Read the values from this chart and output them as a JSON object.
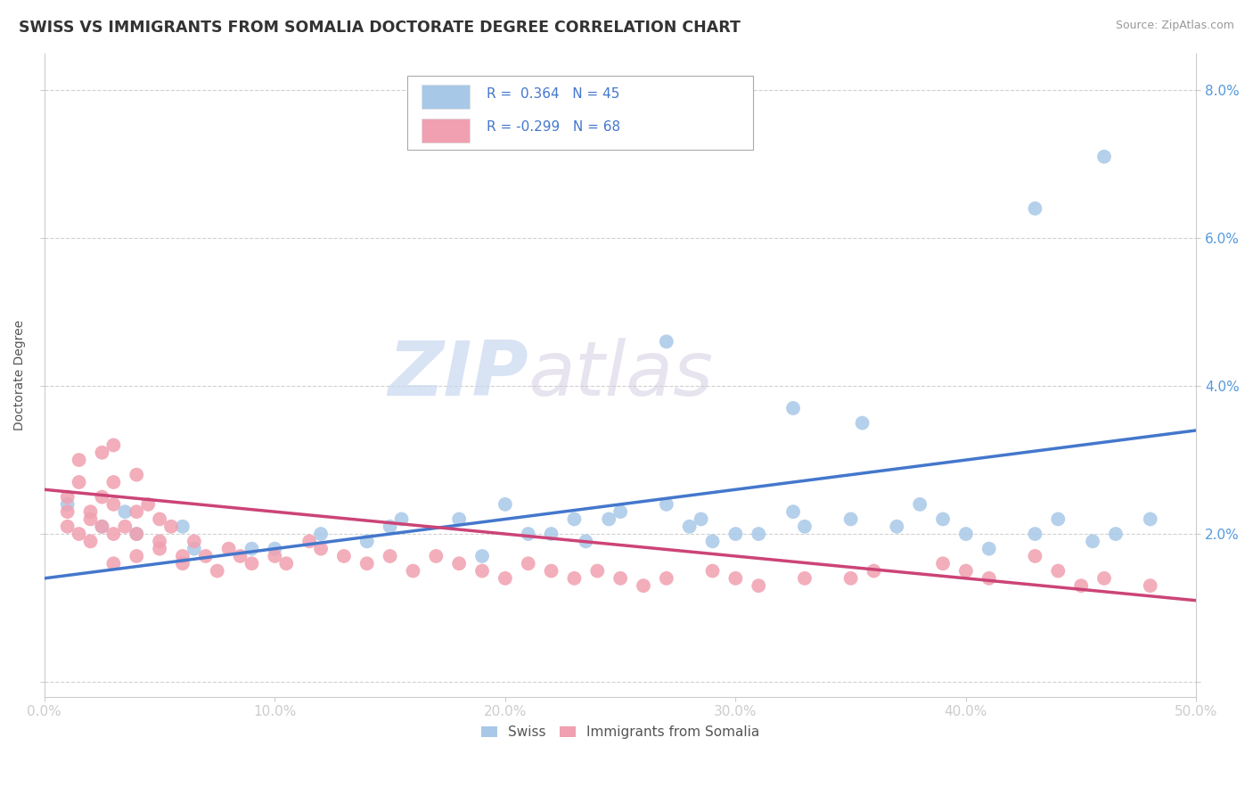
{
  "title": "SWISS VS IMMIGRANTS FROM SOMALIA DOCTORATE DEGREE CORRELATION CHART",
  "source": "Source: ZipAtlas.com",
  "ylabel": "Doctorate Degree",
  "xlim": [
    0.0,
    0.5
  ],
  "ylim": [
    -0.002,
    0.085
  ],
  "yticks": [
    0.0,
    0.02,
    0.04,
    0.06,
    0.08
  ],
  "ytick_labels_right": [
    "",
    "2.0%",
    "4.0%",
    "6.0%",
    "8.0%"
  ],
  "xtick_labels": [
    "0.0%",
    "10.0%",
    "20.0%",
    "30.0%",
    "40.0%",
    "50.0%"
  ],
  "xticks": [
    0.0,
    0.1,
    0.2,
    0.3,
    0.4,
    0.5
  ],
  "legend_top": {
    "R_swiss": "0.364",
    "N_swiss": "45",
    "R_somalia": "-0.299",
    "N_somalia": "68"
  },
  "swiss_color": "#a8c8e8",
  "somalia_color": "#f0a0b0",
  "swiss_line_color": "#4477cc",
  "somalia_line_color": "#cc4477",
  "background_color": "#ffffff",
  "grid_color": "#cccccc",
  "watermark_zip": "ZIP",
  "watermark_atlas": "atlas",
  "swiss_scatter": [
    [
      0.025,
      0.021
    ],
    [
      0.035,
      0.023
    ],
    [
      0.04,
      0.02
    ],
    [
      0.01,
      0.024
    ],
    [
      0.06,
      0.021
    ],
    [
      0.065,
      0.018
    ],
    [
      0.09,
      0.018
    ],
    [
      0.1,
      0.018
    ],
    [
      0.12,
      0.02
    ],
    [
      0.14,
      0.019
    ],
    [
      0.15,
      0.021
    ],
    [
      0.155,
      0.022
    ],
    [
      0.18,
      0.022
    ],
    [
      0.19,
      0.017
    ],
    [
      0.2,
      0.024
    ],
    [
      0.21,
      0.02
    ],
    [
      0.22,
      0.02
    ],
    [
      0.23,
      0.022
    ],
    [
      0.235,
      0.019
    ],
    [
      0.245,
      0.022
    ],
    [
      0.25,
      0.023
    ],
    [
      0.27,
      0.024
    ],
    [
      0.28,
      0.021
    ],
    [
      0.285,
      0.022
    ],
    [
      0.29,
      0.019
    ],
    [
      0.3,
      0.02
    ],
    [
      0.31,
      0.02
    ],
    [
      0.325,
      0.023
    ],
    [
      0.33,
      0.021
    ],
    [
      0.35,
      0.022
    ],
    [
      0.37,
      0.021
    ],
    [
      0.38,
      0.024
    ],
    [
      0.39,
      0.022
    ],
    [
      0.4,
      0.02
    ],
    [
      0.41,
      0.018
    ],
    [
      0.43,
      0.02
    ],
    [
      0.44,
      0.022
    ],
    [
      0.455,
      0.019
    ],
    [
      0.465,
      0.02
    ],
    [
      0.48,
      0.022
    ],
    [
      0.27,
      0.046
    ],
    [
      0.325,
      0.037
    ],
    [
      0.355,
      0.035
    ],
    [
      0.43,
      0.064
    ],
    [
      0.46,
      0.071
    ]
  ],
  "somalia_scatter": [
    [
      0.01,
      0.021
    ],
    [
      0.01,
      0.025
    ],
    [
      0.01,
      0.023
    ],
    [
      0.015,
      0.02
    ],
    [
      0.015,
      0.027
    ],
    [
      0.015,
      0.03
    ],
    [
      0.02,
      0.022
    ],
    [
      0.02,
      0.019
    ],
    [
      0.02,
      0.023
    ],
    [
      0.025,
      0.031
    ],
    [
      0.025,
      0.025
    ],
    [
      0.025,
      0.021
    ],
    [
      0.03,
      0.024
    ],
    [
      0.03,
      0.027
    ],
    [
      0.03,
      0.02
    ],
    [
      0.03,
      0.016
    ],
    [
      0.03,
      0.032
    ],
    [
      0.035,
      0.021
    ],
    [
      0.04,
      0.023
    ],
    [
      0.04,
      0.028
    ],
    [
      0.04,
      0.017
    ],
    [
      0.04,
      0.02
    ],
    [
      0.045,
      0.024
    ],
    [
      0.05,
      0.019
    ],
    [
      0.05,
      0.022
    ],
    [
      0.05,
      0.018
    ],
    [
      0.055,
      0.021
    ],
    [
      0.06,
      0.017
    ],
    [
      0.06,
      0.016
    ],
    [
      0.065,
      0.019
    ],
    [
      0.07,
      0.017
    ],
    [
      0.075,
      0.015
    ],
    [
      0.08,
      0.018
    ],
    [
      0.085,
      0.017
    ],
    [
      0.09,
      0.016
    ],
    [
      0.1,
      0.017
    ],
    [
      0.105,
      0.016
    ],
    [
      0.115,
      0.019
    ],
    [
      0.12,
      0.018
    ],
    [
      0.13,
      0.017
    ],
    [
      0.14,
      0.016
    ],
    [
      0.15,
      0.017
    ],
    [
      0.16,
      0.015
    ],
    [
      0.17,
      0.017
    ],
    [
      0.18,
      0.016
    ],
    [
      0.19,
      0.015
    ],
    [
      0.2,
      0.014
    ],
    [
      0.21,
      0.016
    ],
    [
      0.22,
      0.015
    ],
    [
      0.23,
      0.014
    ],
    [
      0.24,
      0.015
    ],
    [
      0.25,
      0.014
    ],
    [
      0.26,
      0.013
    ],
    [
      0.27,
      0.014
    ],
    [
      0.29,
      0.015
    ],
    [
      0.3,
      0.014
    ],
    [
      0.31,
      0.013
    ],
    [
      0.33,
      0.014
    ],
    [
      0.35,
      0.014
    ],
    [
      0.36,
      0.015
    ],
    [
      0.39,
      0.016
    ],
    [
      0.4,
      0.015
    ],
    [
      0.41,
      0.014
    ],
    [
      0.43,
      0.017
    ],
    [
      0.44,
      0.015
    ],
    [
      0.45,
      0.013
    ],
    [
      0.46,
      0.014
    ],
    [
      0.48,
      0.013
    ]
  ],
  "swiss_trendline_x": [
    0.0,
    0.5
  ],
  "swiss_trendline_y": [
    0.014,
    0.034
  ],
  "somalia_trendline_x": [
    0.0,
    0.5
  ],
  "somalia_trendline_y": [
    0.026,
    0.011
  ]
}
